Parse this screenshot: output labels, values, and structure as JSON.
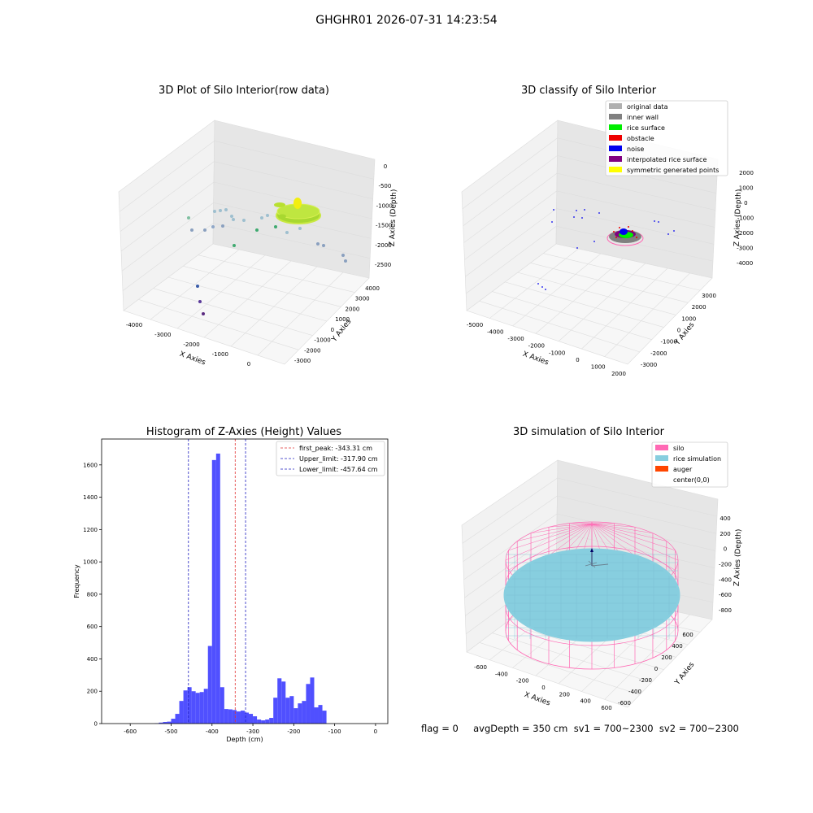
{
  "suptitle": "GHGHR01 2026-07-31 14:23:54",
  "status_line": "flag = 0     avgDepth = 350 cm  sv1 = 700~2300  sv2 = 700~2300",
  "colors": {
    "hist_bar": "#5050ff",
    "first_peak_line": "#e03030",
    "limit_line": "#2020c0",
    "original": "#b0b0b0",
    "inner_wall": "#808080",
    "rice_surface": "#00ee00",
    "obstacle": "#ee0000",
    "noise": "#0000ee",
    "interpolated": "#800080",
    "symmetric": "#ffff00",
    "silo": "#ff69b4",
    "rice_sim": "#87cedf",
    "auger": "#ff4500"
  },
  "chart_data": [
    {
      "type": "scatter",
      "subtype": "3d",
      "title": "3D Plot of Silo Interior(row data)",
      "xlabel": "X Axies",
      "ylabel": "Y Axies",
      "zlabel": "Z Axies (Depth)",
      "x_ticks": [
        "-4000",
        "-3000",
        "-2000",
        "-1000",
        "0"
      ],
      "y_ticks": [
        "-3000",
        "-2000",
        "-1000",
        "0",
        "1000",
        "2000",
        "3000",
        "4000"
      ],
      "z_ticks": [
        "0",
        "-500",
        "-1000",
        "-1500",
        "-2000",
        "-2500"
      ],
      "grid": true
    },
    {
      "type": "scatter",
      "subtype": "3d",
      "title": "3D classify of Silo Interior",
      "xlabel": "X Axies",
      "ylabel": "Y Axies",
      "zlabel": "Z Axies (Depth)",
      "x_ticks": [
        "-5000",
        "-4000",
        "-3000",
        "-2000",
        "-1000",
        "0",
        "1000",
        "2000"
      ],
      "y_ticks": [
        "-3000",
        "-2000",
        "-1000",
        "0",
        "1000",
        "2000",
        "3000"
      ],
      "z_ticks": [
        "2000",
        "1000",
        "0",
        "-1000",
        "-2000",
        "-3000",
        "-4000"
      ],
      "legend": [
        {
          "label": "original data",
          "color": "#b0b0b0"
        },
        {
          "label": "inner wall",
          "color": "#808080"
        },
        {
          "label": "rice surface",
          "color": "#00ee00"
        },
        {
          "label": "obstacle",
          "color": "#ee0000"
        },
        {
          "label": "noise",
          "color": "#0000ee"
        },
        {
          "label": "interpolated rice surface",
          "color": "#800080"
        },
        {
          "label": "symmetric generated points",
          "color": "#ffff00"
        }
      ],
      "legend_loc": "upper right",
      "grid": true
    },
    {
      "type": "bar",
      "subtype": "histogram",
      "title": "Histogram of Z-Axies (Height) Values",
      "xlabel": "Depth (cm)",
      "ylabel": "Frequency",
      "xlim": [
        -670,
        30
      ],
      "ylim": [
        0,
        1760
      ],
      "x_ticks": [
        -600,
        -500,
        -400,
        -300,
        -200,
        -100,
        0
      ],
      "y_ticks": [
        0,
        200,
        400,
        600,
        800,
        1000,
        1200,
        1400,
        1600
      ],
      "bin_start": -540,
      "bin_width": 10,
      "counts": [
        2,
        6,
        10,
        12,
        30,
        60,
        140,
        205,
        225,
        200,
        190,
        195,
        215,
        480,
        1630,
        1670,
        225,
        90,
        88,
        84,
        75,
        80,
        68,
        60,
        45,
        25,
        20,
        25,
        35,
        160,
        280,
        260,
        160,
        170,
        95,
        125,
        140,
        245,
        285,
        100,
        115,
        80
      ],
      "vlines": [
        {
          "label": "first_peak: -343.31 cm",
          "x": -343.31,
          "style": "dashed",
          "color": "#e03030"
        },
        {
          "label": "Upper_limit: -317.90 cm",
          "x": -317.9,
          "style": "dashed",
          "color": "#2020c0"
        },
        {
          "label": "Lower_limit: -457.64 cm",
          "x": -457.64,
          "style": "dashed",
          "color": "#2020c0"
        }
      ],
      "legend_loc": "upper right"
    },
    {
      "type": "scatter",
      "subtype": "3d-surface",
      "title": "3D simulation of Silo Interior",
      "xlabel": "X Axies",
      "ylabel": "Y Axies",
      "zlabel": "Z Axies (Depth)",
      "x_ticks": [
        "-600",
        "-400",
        "-200",
        "0",
        "200",
        "400",
        "600"
      ],
      "y_ticks": [
        "-600",
        "-400",
        "-200",
        "0",
        "200",
        "400",
        "600"
      ],
      "z_ticks": [
        "400",
        "200",
        "0",
        "-200",
        "-400",
        "-600",
        "-800"
      ],
      "legend": [
        {
          "label": "silo",
          "color": "#ff69b4"
        },
        {
          "label": "rice simulation",
          "color": "#87cedf"
        },
        {
          "label": "auger",
          "color": "#ff4500"
        },
        {
          "label": "center(0,0)",
          "color": ""
        }
      ],
      "legend_loc": "upper right",
      "grid": true
    }
  ]
}
